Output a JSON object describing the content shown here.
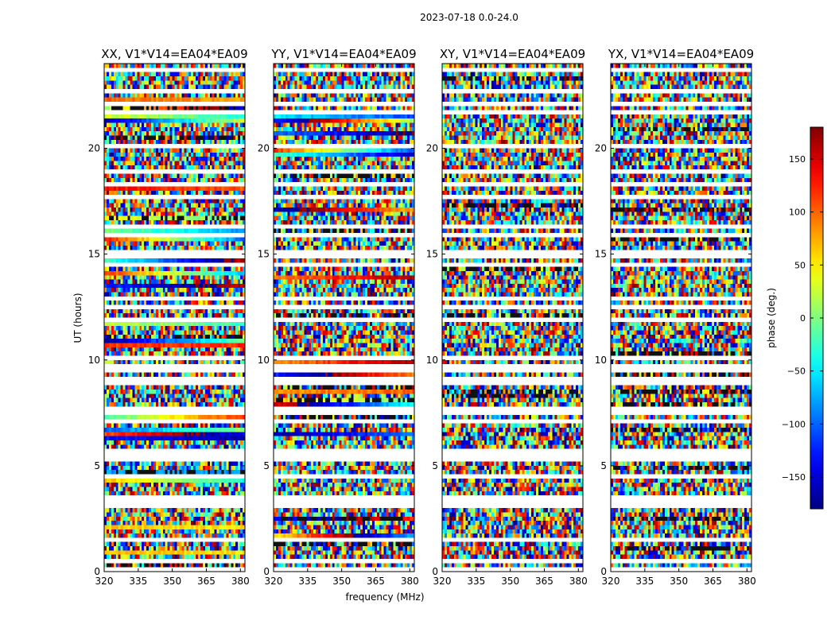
{
  "chart_data": {
    "type": "heatmap",
    "title": "2023-07-18 0.0-24.0",
    "xlabel": "frequency (MHz)",
    "ylabel": "UT (hours)",
    "xlim": [
      320,
      382
    ],
    "ylim": [
      0,
      24
    ],
    "x_ticks": [
      320,
      335,
      350,
      365,
      380
    ],
    "y_ticks": [
      0,
      5,
      10,
      15,
      20
    ],
    "panels": [
      {
        "title": "XX, V1*V14=EA04*EA09",
        "coherent": true
      },
      {
        "title": "YY, V1*V14=EA04*EA09",
        "coherent": true
      },
      {
        "title": "XY, V1*V14=EA04*EA09",
        "coherent": false
      },
      {
        "title": "YX, V1*V14=EA04*EA09",
        "coherent": false
      }
    ],
    "colorbar": {
      "label": "phase (deg.)",
      "range": [
        -180,
        180
      ],
      "ticks": [
        150,
        100,
        50,
        0,
        -50,
        -100,
        -150
      ],
      "tick_labels": [
        "150",
        "100",
        "50",
        "0",
        "−50",
        "−100",
        "−150"
      ],
      "colormap": "jet"
    },
    "gap_rows_ut": [
      0.15,
      0.55,
      1.5,
      2.0,
      3.05,
      3.4,
      3.5,
      4.5,
      5.4,
      5.7,
      7.0,
      7.2,
      7.6,
      9.0,
      9.6,
      10.05,
      11.8,
      12.5,
      12.8,
      14.5,
      14.9,
      15.1,
      15.9,
      16.3,
      17.0,
      17.6,
      18.0,
      18.3,
      18.9,
      20.2,
      21.0,
      21.6,
      22.2,
      22.6,
      23.0,
      23.6
    ]
  }
}
